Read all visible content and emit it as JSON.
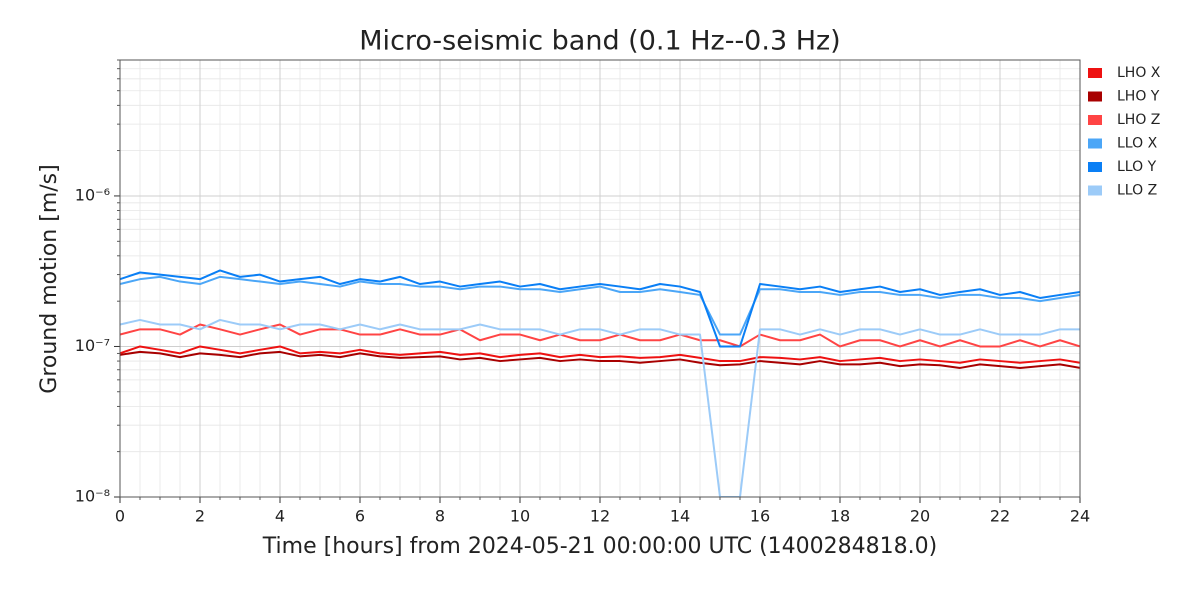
{
  "chart_data": {
    "type": "line",
    "title": "Micro-seismic band (0.1 Hz--0.3 Hz)",
    "x_label": "Time [hours] from 2024-05-21 00:00:00 UTC (1400284818.0)",
    "y_label": "Ground motion [m/s]",
    "log_y": true,
    "grid": true,
    "minor_grid": true,
    "legend": "upper-right-outside",
    "xlim": [
      0,
      24
    ],
    "ylim": [
      1e-08,
      8e-06
    ],
    "xticks": [
      0,
      2,
      4,
      6,
      8,
      10,
      12,
      14,
      16,
      18,
      20,
      22,
      24
    ],
    "yticks": [
      {
        "value": 1e-08,
        "label": "10⁻⁸"
      },
      {
        "value": 1e-07,
        "label": "10⁻⁷"
      },
      {
        "value": 1e-06,
        "label": "10⁻⁶"
      }
    ],
    "xminorticks": [
      0.5,
      1,
      1.5,
      2.5,
      3,
      3.5,
      4.5,
      5,
      5.5,
      6.5,
      7,
      7.5,
      8.5,
      9,
      9.5,
      10.5,
      11,
      11.5,
      12.5,
      13,
      13.5,
      14.5,
      15,
      15.5,
      16.5,
      17,
      17.5,
      18.5,
      19,
      19.5,
      20.5,
      21,
      21.5,
      22.5,
      23,
      23.5
    ],
    "yminorticks": [
      2e-08,
      3e-08,
      4e-08,
      5e-08,
      6e-08,
      7e-08,
      8e-08,
      9e-08,
      2e-07,
      3e-07,
      4e-07,
      5e-07,
      6e-07,
      7e-07,
      8e-07,
      9e-07,
      2e-06,
      3e-06,
      4e-06,
      5e-06,
      6e-06,
      7e-06,
      8e-06
    ],
    "x": [
      0,
      0.5,
      1,
      1.5,
      2,
      2.5,
      3,
      3.5,
      4,
      4.5,
      5,
      5.5,
      6,
      6.5,
      7,
      7.5,
      8,
      8.5,
      9,
      9.5,
      10,
      10.5,
      11,
      11.5,
      12,
      12.5,
      13,
      13.5,
      14,
      14.5,
      15,
      15.5,
      16,
      16.5,
      17,
      17.5,
      18,
      18.5,
      19,
      19.5,
      20,
      20.5,
      21,
      21.5,
      22,
      22.5,
      23,
      23.5,
      24
    ],
    "series": [
      {
        "name": "LHO X",
        "color": "#ee1111",
        "values": [
          9e-08,
          1e-07,
          9.5e-08,
          9e-08,
          1e-07,
          9.5e-08,
          9e-08,
          9.5e-08,
          1e-07,
          9e-08,
          9.2e-08,
          9e-08,
          9.5e-08,
          9e-08,
          8.8e-08,
          9e-08,
          9.2e-08,
          8.8e-08,
          9e-08,
          8.5e-08,
          8.8e-08,
          9e-08,
          8.5e-08,
          8.8e-08,
          8.5e-08,
          8.6e-08,
          8.4e-08,
          8.5e-08,
          8.8e-08,
          8.4e-08,
          8e-08,
          8e-08,
          8.5e-08,
          8.4e-08,
          8.2e-08,
          8.5e-08,
          8e-08,
          8.2e-08,
          8.4e-08,
          8e-08,
          8.2e-08,
          8e-08,
          7.8e-08,
          8.2e-08,
          8e-08,
          7.8e-08,
          8e-08,
          8.2e-08,
          7.8e-08
        ]
      },
      {
        "name": "LHO Y",
        "color": "#a80000",
        "values": [
          8.8e-08,
          9.2e-08,
          9e-08,
          8.5e-08,
          9e-08,
          8.8e-08,
          8.5e-08,
          9e-08,
          9.2e-08,
          8.6e-08,
          8.8e-08,
          8.5e-08,
          9e-08,
          8.6e-08,
          8.4e-08,
          8.5e-08,
          8.6e-08,
          8.2e-08,
          8.4e-08,
          8e-08,
          8.2e-08,
          8.4e-08,
          8e-08,
          8.2e-08,
          8e-08,
          8e-08,
          7.8e-08,
          8e-08,
          8.2e-08,
          7.8e-08,
          7.5e-08,
          7.6e-08,
          8e-08,
          7.8e-08,
          7.6e-08,
          8e-08,
          7.6e-08,
          7.6e-08,
          7.8e-08,
          7.4e-08,
          7.6e-08,
          7.5e-08,
          7.2e-08,
          7.6e-08,
          7.4e-08,
          7.2e-08,
          7.4e-08,
          7.6e-08,
          7.2e-08
        ]
      },
      {
        "name": "LHO Z",
        "color": "#ff4444",
        "values": [
          1.2e-07,
          1.3e-07,
          1.3e-07,
          1.2e-07,
          1.4e-07,
          1.3e-07,
          1.2e-07,
          1.3e-07,
          1.4e-07,
          1.2e-07,
          1.3e-07,
          1.3e-07,
          1.2e-07,
          1.2e-07,
          1.3e-07,
          1.2e-07,
          1.2e-07,
          1.3e-07,
          1.1e-07,
          1.2e-07,
          1.2e-07,
          1.1e-07,
          1.2e-07,
          1.1e-07,
          1.1e-07,
          1.2e-07,
          1.1e-07,
          1.1e-07,
          1.2e-07,
          1.1e-07,
          1.1e-07,
          1e-07,
          1.2e-07,
          1.1e-07,
          1.1e-07,
          1.2e-07,
          1e-07,
          1.1e-07,
          1.1e-07,
          1e-07,
          1.1e-07,
          1e-07,
          1.1e-07,
          1e-07,
          1e-07,
          1.1e-07,
          1e-07,
          1.1e-07,
          1e-07
        ]
      },
      {
        "name": "LLO X",
        "color": "#4ba6f7",
        "values": [
          2.6e-07,
          2.8e-07,
          2.9e-07,
          2.7e-07,
          2.6e-07,
          2.9e-07,
          2.8e-07,
          2.7e-07,
          2.6e-07,
          2.7e-07,
          2.6e-07,
          2.5e-07,
          2.7e-07,
          2.6e-07,
          2.6e-07,
          2.5e-07,
          2.5e-07,
          2.4e-07,
          2.5e-07,
          2.5e-07,
          2.4e-07,
          2.4e-07,
          2.3e-07,
          2.4e-07,
          2.5e-07,
          2.3e-07,
          2.3e-07,
          2.4e-07,
          2.3e-07,
          2.2e-07,
          1.2e-07,
          1.2e-07,
          2.4e-07,
          2.4e-07,
          2.3e-07,
          2.3e-07,
          2.2e-07,
          2.3e-07,
          2.3e-07,
          2.2e-07,
          2.2e-07,
          2.1e-07,
          2.2e-07,
          2.2e-07,
          2.1e-07,
          2.1e-07,
          2e-07,
          2.1e-07,
          2.2e-07
        ]
      },
      {
        "name": "LLO Y",
        "color": "#0a7ff5",
        "values": [
          2.8e-07,
          3.1e-07,
          3e-07,
          2.9e-07,
          2.8e-07,
          3.2e-07,
          2.9e-07,
          3e-07,
          2.7e-07,
          2.8e-07,
          2.9e-07,
          2.6e-07,
          2.8e-07,
          2.7e-07,
          2.9e-07,
          2.6e-07,
          2.7e-07,
          2.5e-07,
          2.6e-07,
          2.7e-07,
          2.5e-07,
          2.6e-07,
          2.4e-07,
          2.5e-07,
          2.6e-07,
          2.5e-07,
          2.4e-07,
          2.6e-07,
          2.5e-07,
          2.3e-07,
          1e-07,
          1e-07,
          2.6e-07,
          2.5e-07,
          2.4e-07,
          2.5e-07,
          2.3e-07,
          2.4e-07,
          2.5e-07,
          2.3e-07,
          2.4e-07,
          2.2e-07,
          2.3e-07,
          2.4e-07,
          2.2e-07,
          2.3e-07,
          2.1e-07,
          2.2e-07,
          2.3e-07
        ]
      },
      {
        "name": "LLO Z",
        "color": "#9ccbf8",
        "values": [
          1.4e-07,
          1.5e-07,
          1.4e-07,
          1.4e-07,
          1.3e-07,
          1.5e-07,
          1.4e-07,
          1.4e-07,
          1.3e-07,
          1.4e-07,
          1.4e-07,
          1.3e-07,
          1.4e-07,
          1.3e-07,
          1.4e-07,
          1.3e-07,
          1.3e-07,
          1.3e-07,
          1.4e-07,
          1.3e-07,
          1.3e-07,
          1.3e-07,
          1.2e-07,
          1.3e-07,
          1.3e-07,
          1.2e-07,
          1.3e-07,
          1.3e-07,
          1.2e-07,
          1.2e-07,
          1e-08,
          1e-08,
          1.3e-07,
          1.3e-07,
          1.2e-07,
          1.3e-07,
          1.2e-07,
          1.3e-07,
          1.3e-07,
          1.2e-07,
          1.3e-07,
          1.2e-07,
          1.2e-07,
          1.3e-07,
          1.2e-07,
          1.2e-07,
          1.2e-07,
          1.3e-07,
          1.3e-07
        ]
      }
    ]
  }
}
